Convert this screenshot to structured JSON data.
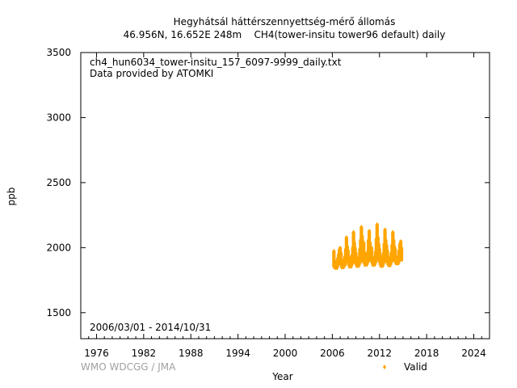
{
  "chart_data": {
    "type": "scatter",
    "title": "Hegyhátsál háttérszennyettség-mérő állomás",
    "subtitle": "46.956N, 16.652E 248m    CH4(tower-insitu tower96 default) daily",
    "xlabel": "Year",
    "ylabel": "ppb",
    "xlim": [
      1974,
      2026
    ],
    "ylim": [
      1300,
      3500
    ],
    "x_ticks": [
      "1976",
      "1982",
      "1988",
      "1994",
      "2000",
      "2006",
      "2012",
      "2018",
      "2024"
    ],
    "y_ticks": [
      "1500",
      "2000",
      "2500",
      "3000",
      "3500"
    ],
    "file_label": "ch4_hun6034_tower-insitu_157_6097-9999_daily.txt",
    "provider": "Data provided by ATOMKI",
    "date_range": "2006/03/01 - 2014/10/31",
    "credit": "WMO WDCGG / JMA",
    "grid": false,
    "legend_position": "bottom-right",
    "series": [
      {
        "name": "Valid",
        "color": "#ffa500",
        "marker": "diamond",
        "x": [
          2006.2,
          2006.3,
          2006.4,
          2006.5,
          2006.6,
          2006.7,
          2006.8,
          2006.9,
          2007.0,
          2007.1,
          2007.2,
          2007.3,
          2007.4,
          2007.5,
          2007.6,
          2007.7,
          2007.8,
          2007.9,
          2008.0,
          2008.1,
          2008.2,
          2008.3,
          2008.4,
          2008.5,
          2008.6,
          2008.7,
          2008.8,
          2008.9,
          2009.0,
          2009.1,
          2009.2,
          2009.3,
          2009.4,
          2009.5,
          2009.6,
          2009.7,
          2009.8,
          2009.9,
          2010.0,
          2010.1,
          2010.2,
          2010.3,
          2010.4,
          2010.5,
          2010.6,
          2010.7,
          2010.8,
          2010.9,
          2011.0,
          2011.1,
          2011.2,
          2011.3,
          2011.4,
          2011.5,
          2011.6,
          2011.7,
          2011.8,
          2011.9,
          2012.0,
          2012.1,
          2012.2,
          2012.3,
          2012.4,
          2012.5,
          2012.6,
          2012.7,
          2012.8,
          2012.9,
          2013.0,
          2013.1,
          2013.2,
          2013.3,
          2013.4,
          2013.5,
          2013.6,
          2013.7,
          2013.8,
          2013.9,
          2014.0,
          2014.1,
          2014.2,
          2014.3,
          2014.4,
          2014.5,
          2014.6,
          2014.7,
          2014.8
        ],
        "y": [
          1975,
          1900,
          1880,
          1870,
          1890,
          1920,
          1950,
          1985,
          2000,
          1960,
          1910,
          1880,
          1885,
          1900,
          1935,
          1990,
          2080,
          2010,
          1980,
          1930,
          1900,
          1890,
          1905,
          1945,
          2000,
          2120,
          2040,
          2000,
          1960,
          1915,
          1895,
          1900,
          1930,
          1990,
          2060,
          2160,
          2090,
          2010,
          2040,
          1960,
          1915,
          1905,
          1920,
          1970,
          2060,
          2130,
          2040,
          2000,
          2000,
          1930,
          1905,
          1900,
          1920,
          1970,
          2070,
          2180,
          2080,
          2030,
          1990,
          1940,
          1900,
          1890,
          1910,
          1960,
          2030,
          2140,
          2060,
          2020,
          1980,
          1930,
          1900,
          1895,
          1920,
          1960,
          2020,
          2120,
          2060,
          2010,
          1990,
          1935,
          1910,
          1915,
          1935,
          1980,
          2030,
          2050,
          2000
        ],
        "y_min": [
          1850,
          1840,
          1835,
          1830,
          1840,
          1855,
          1870,
          1880,
          1890,
          1865,
          1845,
          1835,
          1840,
          1850,
          1860,
          1880,
          1900,
          1890,
          1880,
          1860,
          1845,
          1840,
          1850,
          1865,
          1880,
          1900,
          1890,
          1880,
          1870,
          1855,
          1845,
          1850,
          1860,
          1875,
          1890,
          1910,
          1900,
          1885,
          1890,
          1870,
          1855,
          1855,
          1865,
          1880,
          1895,
          1910,
          1900,
          1890,
          1890,
          1870,
          1855,
          1855,
          1865,
          1880,
          1900,
          1915,
          1905,
          1895,
          1885,
          1865,
          1850,
          1845,
          1855,
          1870,
          1890,
          1905,
          1895,
          1885,
          1880,
          1865,
          1855,
          1850,
          1865,
          1880,
          1895,
          1910,
          1900,
          1890,
          1890,
          1875,
          1865,
          1865,
          1875,
          1890,
          1900,
          1905,
          1895
        ]
      }
    ]
  }
}
